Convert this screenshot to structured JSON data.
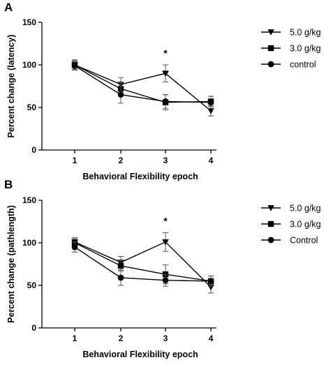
{
  "chart_data": [
    {
      "panel": "A",
      "type": "line",
      "xlabel": "Behavioral Flexibility epoch",
      "ylabel": "Percent change (latency)",
      "categories": [
        "1",
        "2",
        "3",
        "4"
      ],
      "ylim": [
        0,
        150
      ],
      "yticks": [
        "0",
        "50",
        "100",
        "150"
      ],
      "grid": false,
      "legend_position": "right",
      "annotation": {
        "text": "*",
        "category": "3"
      },
      "series": [
        {
          "name": "5.0 g/kg",
          "marker": "triangle-down",
          "values": [
            100,
            77,
            90,
            46
          ],
          "errors": [
            6,
            8,
            10,
            6
          ]
        },
        {
          "name": "3.0 g/kg",
          "marker": "square",
          "values": [
            100,
            72,
            56,
            57
          ],
          "errors": [
            5,
            7,
            9,
            6
          ]
        },
        {
          "name": "control",
          "marker": "circle",
          "values": [
            99,
            65,
            57,
            56
          ],
          "errors": [
            5,
            10,
            8,
            7
          ]
        }
      ]
    },
    {
      "panel": "B",
      "type": "line",
      "xlabel": "Behavioral Flexibility epoch",
      "ylabel": "Percent change (pathlength)",
      "categories": [
        "1",
        "2",
        "3",
        "4"
      ],
      "ylim": [
        0,
        150
      ],
      "yticks": [
        "0",
        "50",
        "100",
        "150"
      ],
      "grid": false,
      "legend_position": "right",
      "annotation": {
        "text": "*",
        "category": "3"
      },
      "series": [
        {
          "name": "5.0 g/kg",
          "marker": "triangle-down",
          "values": [
            101,
            77,
            101,
            48
          ],
          "errors": [
            5,
            7,
            11,
            7
          ]
        },
        {
          "name": "3.0 g/kg",
          "marker": "square",
          "values": [
            100,
            73,
            63,
            55
          ],
          "errors": [
            5,
            6,
            11,
            6
          ]
        },
        {
          "name": "Control",
          "marker": "circle",
          "values": [
            95,
            59,
            56,
            55
          ],
          "errors": [
            6,
            9,
            7,
            6
          ]
        }
      ]
    }
  ]
}
